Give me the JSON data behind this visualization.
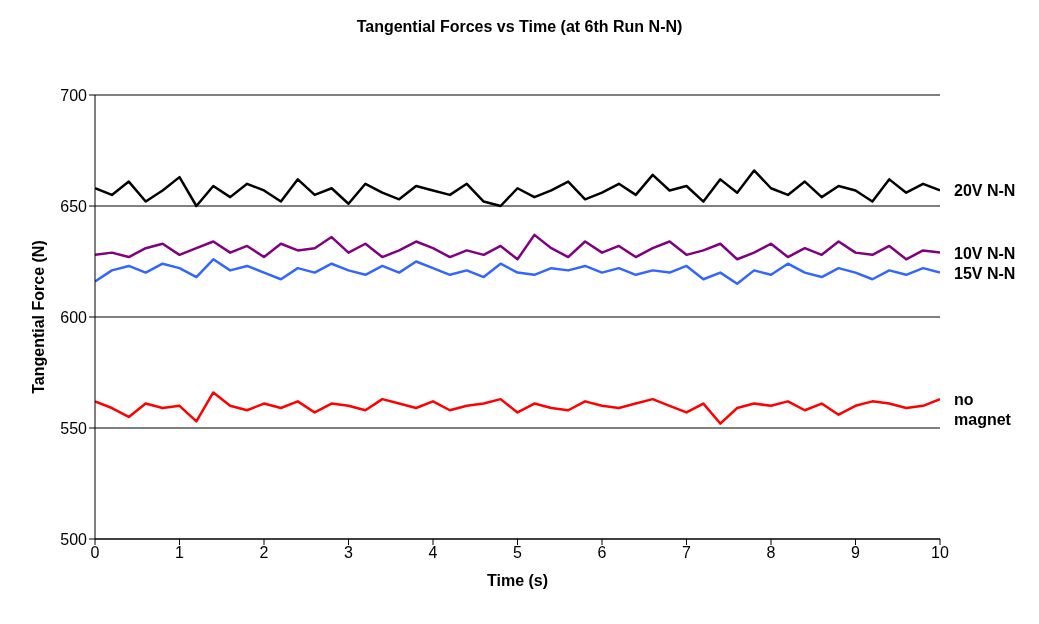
{
  "chart_data": {
    "type": "line",
    "title": "Tangential Forces vs Time (at 6th Run N-N)",
    "xlabel": "Time (s)",
    "ylabel": "Tangential Force (N)",
    "x": [
      0,
      0.2,
      0.4,
      0.6,
      0.8,
      1,
      1.2,
      1.4,
      1.6,
      1.8,
      2,
      2.2,
      2.4,
      2.6,
      2.8,
      3,
      3.2,
      3.4,
      3.6,
      3.8,
      4,
      4.2,
      4.4,
      4.6,
      4.8,
      5,
      5.2,
      5.4,
      5.6,
      5.8,
      6,
      6.2,
      6.4,
      6.6,
      6.8,
      7,
      7.2,
      7.4,
      7.6,
      7.8,
      8,
      8.2,
      8.4,
      8.6,
      8.8,
      9,
      9.2,
      9.4,
      9.6,
      9.8,
      10
    ],
    "series": [
      {
        "name": "20V N-N",
        "color": "#000000",
        "values": [
          658,
          655,
          661,
          652,
          657,
          663,
          650,
          659,
          654,
          660,
          657,
          652,
          662,
          655,
          658,
          651,
          660,
          656,
          653,
          659,
          657,
          655,
          660,
          652,
          650,
          658,
          654,
          657,
          661,
          653,
          656,
          660,
          655,
          664,
          657,
          659,
          652,
          662,
          656,
          666,
          658,
          655,
          661,
          654,
          659,
          657,
          652,
          662,
          656,
          660,
          657
        ]
      },
      {
        "name": "10V N-N",
        "color": "#800080",
        "values": [
          628,
          629,
          627,
          631,
          633,
          628,
          631,
          634,
          629,
          632,
          627,
          633,
          630,
          631,
          636,
          629,
          633,
          627,
          630,
          634,
          631,
          627,
          630,
          628,
          632,
          626,
          637,
          631,
          627,
          634,
          629,
          632,
          627,
          631,
          634,
          628,
          630,
          633,
          626,
          629,
          633,
          627,
          631,
          628,
          634,
          629,
          628,
          632,
          626,
          630,
          629
        ]
      },
      {
        "name": "15V N-N",
        "color": "#3366ff",
        "values": [
          616,
          621,
          623,
          620,
          624,
          622,
          618,
          626,
          621,
          623,
          620,
          617,
          622,
          620,
          624,
          621,
          619,
          623,
          620,
          625,
          622,
          619,
          621,
          618,
          624,
          620,
          619,
          622,
          621,
          623,
          620,
          622,
          619,
          621,
          620,
          623,
          617,
          620,
          615,
          621,
          619,
          624,
          620,
          618,
          622,
          620,
          617,
          621,
          619,
          622,
          620
        ]
      },
      {
        "name": "no magnet",
        "color": "#ff0000",
        "values": [
          562,
          559,
          555,
          561,
          559,
          560,
          553,
          566,
          560,
          558,
          561,
          559,
          562,
          557,
          561,
          560,
          558,
          563,
          561,
          559,
          562,
          558,
          560,
          561,
          563,
          557,
          561,
          559,
          558,
          562,
          560,
          559,
          561,
          563,
          560,
          557,
          561,
          552,
          559,
          561,
          560,
          562,
          558,
          561,
          556,
          560,
          562,
          561,
          559,
          560,
          563
        ]
      }
    ],
    "xlim": [
      0,
      10
    ],
    "xticks": [
      0,
      1,
      2,
      3,
      4,
      5,
      6,
      7,
      8,
      9,
      10
    ],
    "ylim": [
      500,
      700
    ],
    "yticks": [
      500,
      550,
      600,
      650,
      700
    ],
    "grid": "y",
    "legend": false,
    "marker": "none",
    "line_style": "solid"
  }
}
